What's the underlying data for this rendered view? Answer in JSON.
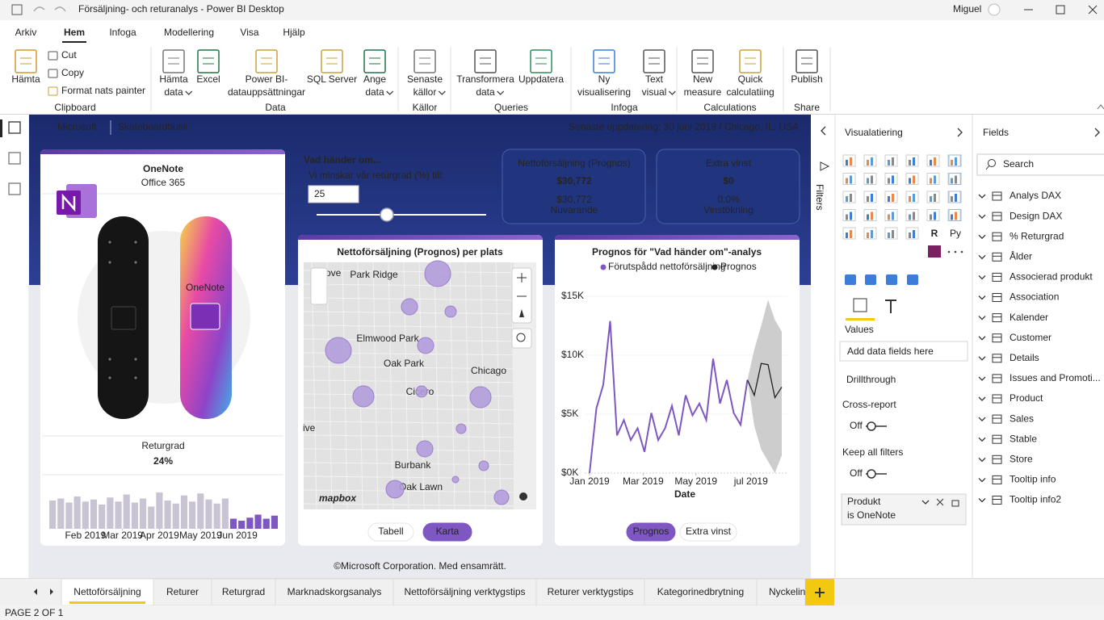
{
  "window": {
    "title": "Försäljning- och returanalys - Power BI Desktop",
    "user": "Miguel"
  },
  "menu": {
    "tabs": [
      "Arkiv",
      "Hem",
      "Infoga",
      "Modellering",
      "Visa",
      "Hjälp"
    ],
    "active": 1
  },
  "ribbon": {
    "clipboard": [
      "Cut",
      "Copy",
      "Format nats painter"
    ],
    "buttons": [
      {
        "lines": [
          "Hämta"
        ]
      },
      {
        "lines": [
          "Hämta",
          "data"
        ]
      },
      {
        "lines": [
          "Excel"
        ]
      },
      {
        "lines": [
          "Power BI-",
          "datauppsättningar"
        ]
      },
      {
        "lines": [
          "SQL Server"
        ]
      },
      {
        "lines": [
          "Ange",
          "data"
        ]
      },
      {
        "lines": [
          "Senaste",
          "källor"
        ]
      },
      {
        "lines": [
          "Transformera",
          "data"
        ]
      },
      {
        "lines": [
          "Uppdatera"
        ]
      },
      {
        "lines": [
          "Ny",
          "visualisering"
        ]
      },
      {
        "lines": [
          "Text",
          "visual"
        ]
      },
      {
        "lines": [
          "New",
          "measure"
        ]
      },
      {
        "lines": [
          "Quick",
          "calculatiing"
        ]
      },
      {
        "lines": [
          "Publish"
        ]
      }
    ],
    "groups": [
      "Clipboard",
      "Data",
      "Källor",
      "Queries",
      "Infoga",
      "Calculations",
      "Share"
    ]
  },
  "report": {
    "brand": "Microsoft",
    "store": "Skateboardbutik",
    "updated": "Senaste uppdatering: 30 juni 2019 / Chicago, IL, USA",
    "product_card": {
      "title": "OneNote",
      "subtitle": "Office 365",
      "deck_label": "OneNote",
      "metric_label": "Returgrad",
      "metric_value": "24%",
      "chart": {
        "type": "bar",
        "values": [
          28,
          30,
          26,
          32,
          27,
          29,
          24,
          31,
          27,
          34,
          26,
          30,
          22,
          36,
          28,
          25,
          33,
          27,
          35,
          29,
          25,
          30,
          10,
          8,
          11,
          14,
          10,
          13
        ],
        "colors": [
          "#c9c4d4",
          "#c9c4d4",
          "#c9c4d4",
          "#c9c4d4",
          "#c9c4d4",
          "#c9c4d4",
          "#c9c4d4",
          "#c9c4d4",
          "#c9c4d4",
          "#c9c4d4",
          "#c9c4d4",
          "#c9c4d4",
          "#c9c4d4",
          "#c9c4d4",
          "#c9c4d4",
          "#c9c4d4",
          "#c9c4d4",
          "#c9c4d4",
          "#c9c4d4",
          "#c9c4d4",
          "#c9c4d4",
          "#c9c4d4",
          "#7e57c2",
          "#7e57c2",
          "#7e57c2",
          "#7e57c2",
          "#7e57c2",
          "#7e57c2"
        ],
        "ylim": [
          0,
          40
        ],
        "xticks": [
          {
            "value": 4,
            "label": "Feb 2019"
          },
          {
            "value": 8.5,
            "label": "Mar 2019"
          },
          {
            "value": 13,
            "label": "Apr 2019"
          },
          {
            "value": 18,
            "label": "May 2019"
          },
          {
            "value": 22.5,
            "label": "Jun 2019"
          }
        ]
      }
    },
    "what_if": {
      "title": "Vad händer om...",
      "prompt": "Vi minskar vår returgrad (%) till:",
      "input": "25"
    },
    "kpis": [
      {
        "title": "Nettoförsäljning (Prognos)",
        "value": "$30,772",
        "sub_value": "$30,772",
        "sub_label": "Nuvarande"
      },
      {
        "title": "Extra vinst",
        "value": "$0",
        "sub_value": "0.0%",
        "sub_label": "Vinstökning"
      }
    ],
    "map": {
      "title": "Nettoförsäljning (Prognos) per plats",
      "places": [
        "Park Ridge",
        "Elmwood Park",
        "Oak Park",
        "Chicago",
        "Cicero",
        "Burbank",
        "Oak Lawn",
        "ove",
        "ive"
      ],
      "logo": "mapbox",
      "bubble_sizes": [
        16,
        10,
        7,
        16,
        10,
        13,
        7,
        13,
        6,
        10,
        6,
        4,
        11,
        9
      ],
      "bubble_color": "#b39ddb",
      "buttons": [
        "Tabell",
        "Karta"
      ],
      "active": 1
    },
    "forecast": {
      "type": "line",
      "title": "Prognos för \"Vad händer om\"-analys",
      "categories": [
        null,
        null,
        null,
        null,
        null,
        null,
        null,
        null,
        null,
        null,
        null,
        null,
        null,
        null,
        null,
        null,
        null,
        null,
        null,
        null,
        null,
        null,
        null,
        null,
        null,
        null,
        null,
        null,
        null
      ],
      "series": [
        {
          "name": "Förutspådd nettoförsäljning",
          "color": "#7e57c2",
          "values": [
            0,
            5500,
            7500,
            12900,
            3200,
            4500,
            2800,
            3800,
            1800,
            5100,
            2800,
            3800,
            5700,
            3200,
            6600,
            4900,
            5900,
            4500,
            9700,
            5900,
            7900,
            5100,
            4100,
            7900,
            null,
            null,
            null,
            null,
            null
          ]
        },
        {
          "name": "Prognos",
          "color": "#222222",
          "values": [
            null,
            null,
            null,
            null,
            null,
            null,
            null,
            null,
            null,
            null,
            null,
            null,
            null,
            null,
            null,
            null,
            null,
            null,
            null,
            null,
            null,
            null,
            null,
            7900,
            6600,
            9300,
            9200,
            6400,
            7300
          ]
        }
      ],
      "band": {
        "color": "#c8c8c8",
        "upper": [
          null,
          null,
          null,
          null,
          null,
          null,
          null,
          null,
          null,
          null,
          null,
          null,
          null,
          null,
          null,
          null,
          null,
          null,
          null,
          null,
          null,
          null,
          null,
          7900,
          10500,
          12500,
          14700,
          13000,
          12000
        ],
        "lower": [
          null,
          null,
          null,
          null,
          null,
          null,
          null,
          null,
          null,
          null,
          null,
          null,
          null,
          null,
          null,
          null,
          null,
          null,
          null,
          null,
          null,
          null,
          null,
          7900,
          4000,
          2000,
          1000,
          0,
          1500
        ]
      },
      "ylim": [
        0,
        15000
      ],
      "yticks": [
        {
          "value": 0,
          "label": "$0K"
        },
        {
          "value": 5000,
          "label": "$5K"
        },
        {
          "value": 10000,
          "label": "$10K"
        },
        {
          "value": 15000,
          "label": "$15K"
        }
      ],
      "xticks": [
        {
          "value": 0,
          "label": "Jan 2019"
        },
        {
          "value": 7.8,
          "label": "Mar 2019"
        },
        {
          "value": 15.5,
          "label": "May 2019"
        },
        {
          "value": 23.5,
          "label": "jul 2019"
        }
      ],
      "xlabel": "Date",
      "buttons": [
        "Prognos",
        "Extra vinst"
      ],
      "active": 0
    },
    "footer": "©Microsoft Corporation. Med ensamrätt."
  },
  "pages": {
    "tabs": [
      "Nettoförsäljning",
      "Returer",
      "Returgrad",
      "Marknadskorgsanalys",
      "Nettoförsäljning verktygstips",
      "Returer verktygstips",
      "Kategorinedbrytning",
      "Nyckelin"
    ],
    "active": 0,
    "status": "PAGE 2 OF 1"
  },
  "filters": {
    "label": "Filters"
  },
  "visualizations": {
    "title": "Visualatiering",
    "glyphs": [
      "R",
      "Py"
    ],
    "values_label": "Values",
    "values_placeholder": "Add data fields here",
    "drillthrough": "Drillthrough",
    "cross_report": "Cross-report",
    "cross_report_state": "Off",
    "keep_filters": "Keep all filters",
    "keep_filters_state": "Off",
    "filter_field": "Produkt",
    "filter_value": "is OneNote"
  },
  "fields": {
    "title": "Fields",
    "search": "Search",
    "tables": [
      "Analys DAX",
      "Design DAX",
      "% Returgrad",
      "Ålder",
      "Associerad produkt",
      "Association",
      "Kalender",
      "Customer",
      "Details",
      "Issues and Promoti...",
      "Product",
      "Sales",
      "Stable",
      "Store",
      "Tooltip info",
      "Tooltip info2"
    ]
  }
}
